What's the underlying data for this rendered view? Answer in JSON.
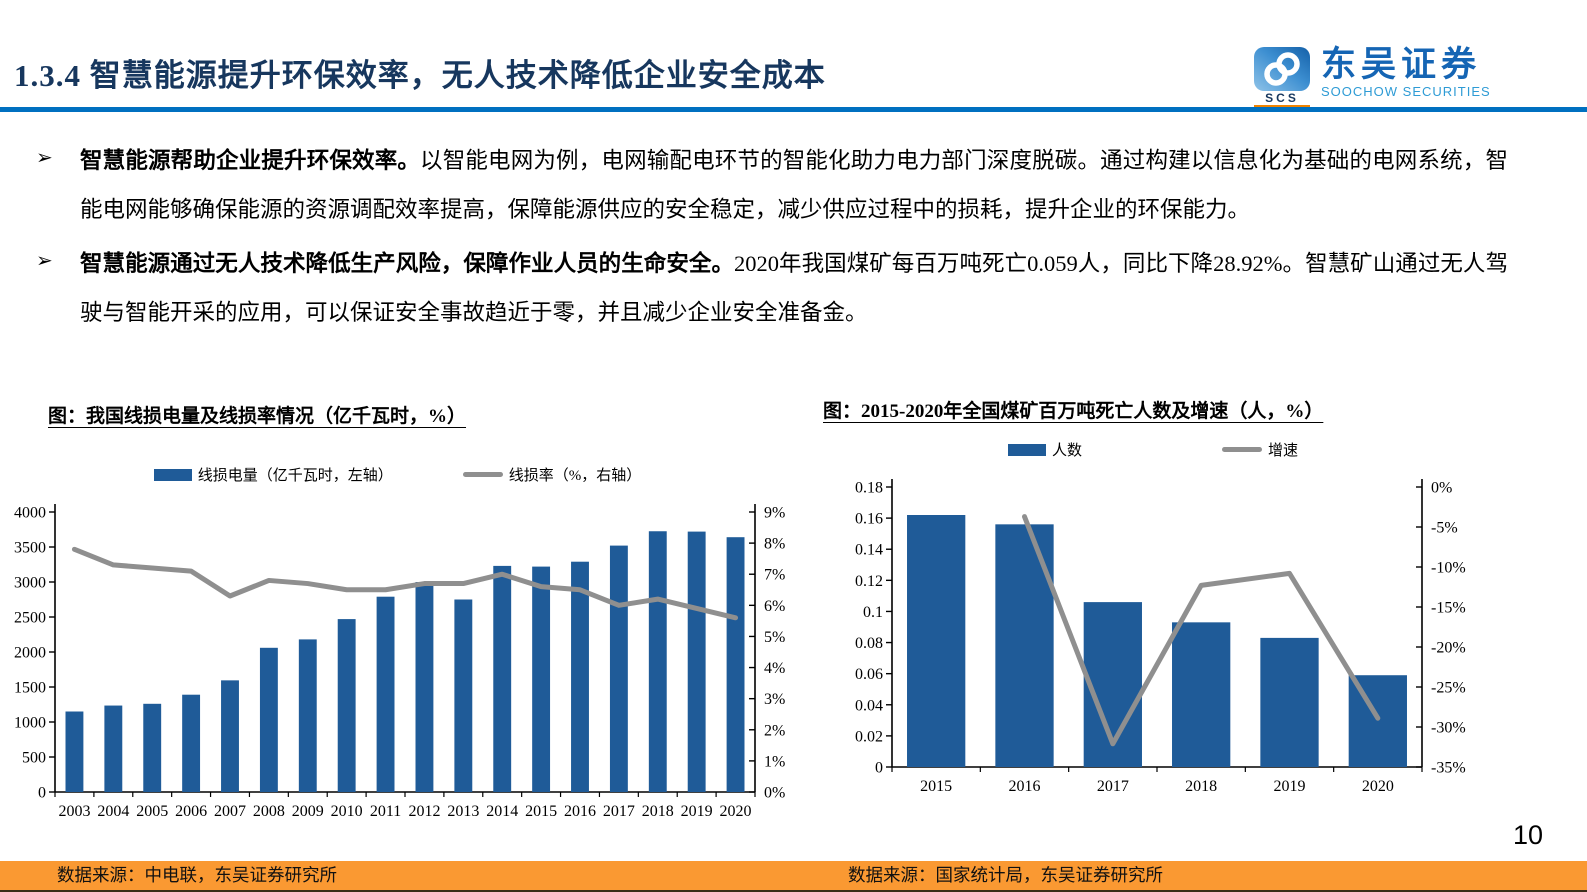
{
  "header": {
    "title": "1.3.4 智慧能源提升环保效率，无人技术降低企业安全成本",
    "logo": {
      "cn": "东吴证券",
      "en": "SOOCHOW SECURITIES",
      "badge": "SCS"
    }
  },
  "bullet_marker": "➢",
  "bullets": [
    {
      "bold": "智慧能源帮助企业提升环保效率。",
      "text": "以智能电网为例，电网输配电环节的智能化助力电力部门深度脱碳。通过构建以信息化为基础的电网系统，智能电网能够确保能源的资源调配效率提高，保障能源供应的安全稳定，减少供应过程中的损耗，提升企业的环保能力。"
    },
    {
      "bold": "智慧能源通过无人技术降低生产风险，保障作业人员的生命安全。",
      "text": "2020年我国煤矿每百万吨死亡0.059人，同比下降28.92%。智慧矿山通过无人驾驶与智能开采的应用，可以保证安全事故趋近于零，并且减少企业安全准备金。"
    }
  ],
  "chart_data": [
    {
      "type": "bar+line",
      "title": "图：我国线损电量及线损率情况（亿千瓦时，%）",
      "categories": [
        "2003",
        "2004",
        "2005",
        "2006",
        "2007",
        "2008",
        "2009",
        "2010",
        "2011",
        "2012",
        "2013",
        "2014",
        "2015",
        "2016",
        "2017",
        "2018",
        "2019",
        "2020"
      ],
      "series": [
        {
          "name": "线损电量（亿千瓦时，左轴）",
          "kind": "bar",
          "axis": "left",
          "values": [
            1150,
            1235,
            1260,
            1390,
            1595,
            2060,
            2180,
            2470,
            2790,
            3000,
            2750,
            3230,
            3220,
            3290,
            3520,
            3725,
            3720,
            3640
          ]
        },
        {
          "name": "线损率（%，右轴）",
          "kind": "line",
          "axis": "right",
          "values": [
            7.8,
            7.3,
            7.2,
            7.1,
            6.3,
            6.8,
            6.7,
            6.5,
            6.5,
            6.7,
            6.7,
            7.0,
            6.6,
            6.5,
            6.0,
            6.2,
            5.9,
            5.6
          ]
        }
      ],
      "left_axis": {
        "min": 0,
        "max": 4000,
        "step": 500
      },
      "right_axis": {
        "min": 0,
        "max": 9,
        "step": 1,
        "suffix": "%"
      },
      "legend_position": "top",
      "grid": false
    },
    {
      "type": "bar+line",
      "title": "图：2015-2020年全国煤矿百万吨死亡人数及增速（人，%）",
      "categories": [
        "2015",
        "2016",
        "2017",
        "2018",
        "2019",
        "2020"
      ],
      "series": [
        {
          "name": "人数",
          "kind": "bar",
          "axis": "left",
          "values": [
            0.162,
            0.156,
            0.106,
            0.093,
            0.083,
            0.059
          ]
        },
        {
          "name": "增速",
          "kind": "line",
          "axis": "right",
          "values": [
            null,
            -3.7,
            -32.1,
            -12.3,
            -10.8,
            -28.9
          ]
        }
      ],
      "left_axis": {
        "min": 0,
        "max": 0.18,
        "step": 0.02
      },
      "right_axis": {
        "min": -35,
        "max": 0,
        "step": 5,
        "suffix": "%"
      },
      "legend_position": "top",
      "grid": false
    }
  ],
  "footer": {
    "left_source": "数据来源：中电联，东吴证券研究所",
    "right_source": "数据来源：国家统计局，东吴证券研究所",
    "page_number": "10"
  },
  "colors": {
    "bar": "#1F5B98",
    "line": "#8F8F8F",
    "title_navy": "#17375E",
    "divider_blue": "#0070C0",
    "footer_orange": "#FA9932",
    "logo_blue": "#1565B4",
    "logo_light_blue": "#2E9BD5",
    "logo_orange": "#F08300"
  }
}
